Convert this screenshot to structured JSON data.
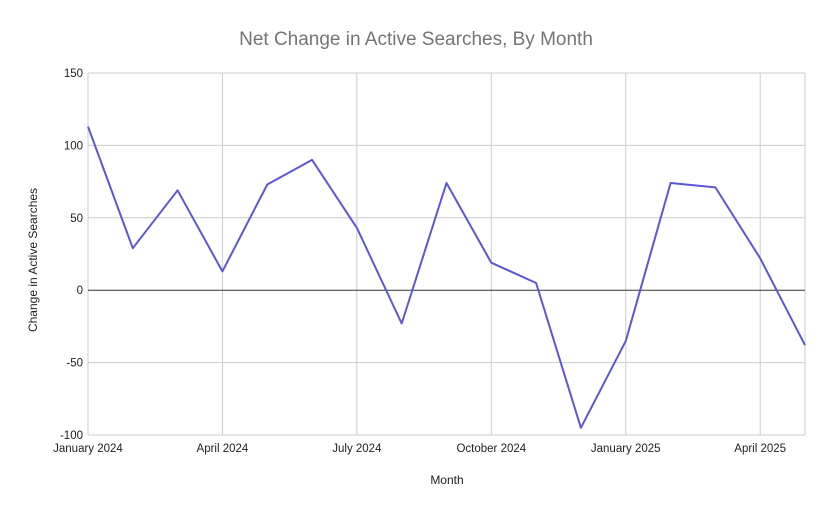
{
  "chart_data": {
    "type": "line",
    "title": "Net Change in Active Searches, By Month",
    "xlabel": "Month",
    "ylabel": "Change in Active Searches",
    "ylim": [
      -100,
      150
    ],
    "y_ticks": [
      150,
      100,
      50,
      0,
      -50,
      -100
    ],
    "y_tick_labels": [
      "150",
      "100",
      "50",
      "0",
      "-50",
      "-100"
    ],
    "x_tick_labels": [
      "January 2024",
      "April 2024",
      "July 2024",
      "October 2024",
      "January 2025",
      "April 2025"
    ],
    "x_tick_months": [
      "2024-01",
      "2024-04",
      "2024-07",
      "2024-10",
      "2025-01",
      "2025-04"
    ],
    "grid": true,
    "legend": "none",
    "series": [
      {
        "color": "#5b57d9",
        "x": [
          "2024-01",
          "2024-02",
          "2024-03",
          "2024-04",
          "2024-05",
          "2024-06",
          "2024-07",
          "2024-08",
          "2024-09",
          "2024-10",
          "2024-11",
          "2024-12",
          "2025-01",
          "2025-02",
          "2025-03",
          "2025-04",
          "2025-05"
        ],
        "values": [
          113,
          29,
          69,
          13,
          73,
          90,
          43,
          -23,
          74,
          19,
          5,
          -95,
          -35,
          74,
          71,
          22,
          -38
        ]
      }
    ],
    "colors": {
      "grid": "#cccccc",
      "zero_line": "#333333"
    }
  }
}
